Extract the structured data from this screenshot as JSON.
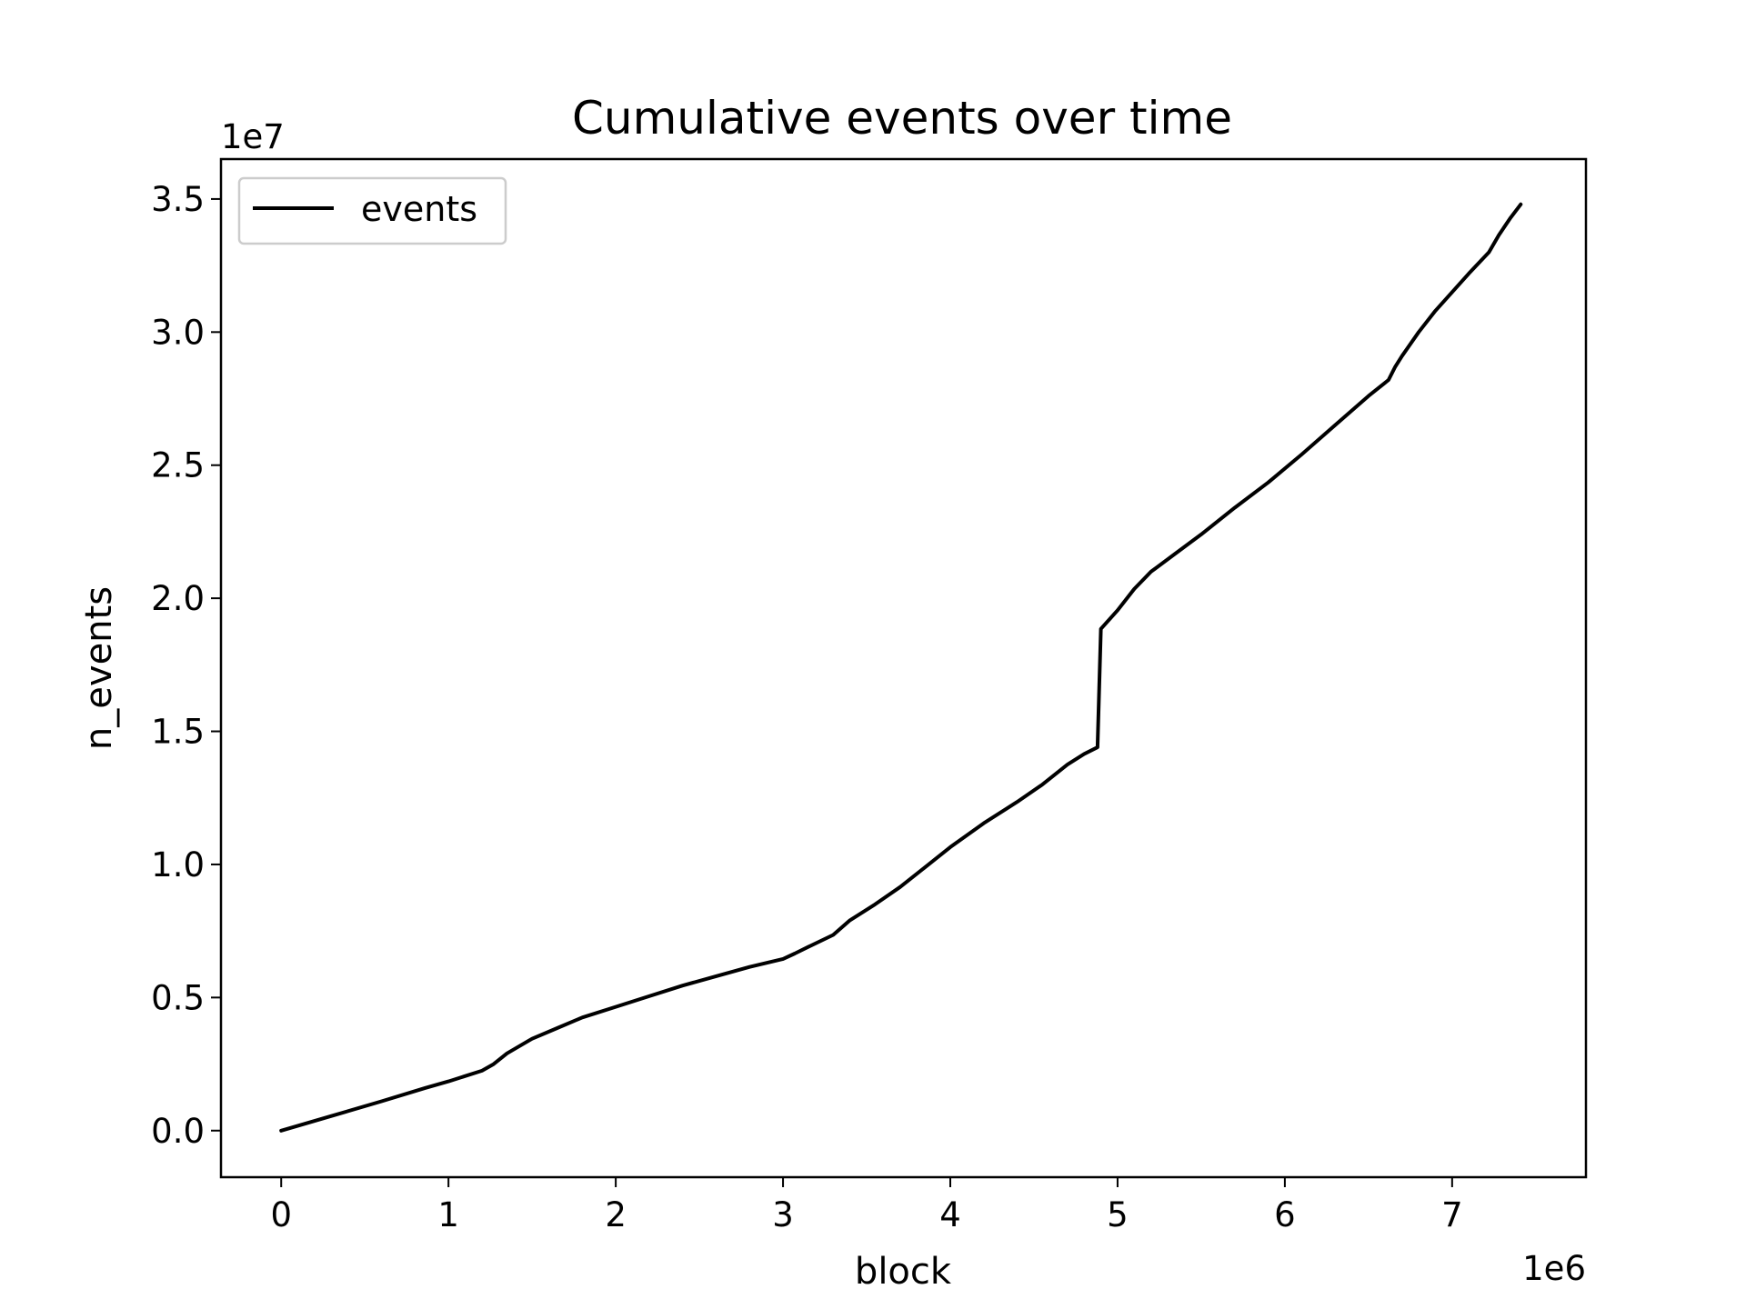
{
  "chart_data": {
    "type": "line",
    "title": "Cumulative events over time",
    "xlabel": "block",
    "ylabel": "n_events",
    "x_offset_label": "1e6",
    "y_offset_label": "1e7",
    "xlim": [
      -0.36,
      7.8
    ],
    "ylim": [
      -0.175,
      3.65
    ],
    "x_scale_note": "x values in units of 1e6",
    "y_scale_note": "y values in units of 1e7",
    "xticks": [
      0,
      1,
      2,
      3,
      4,
      5,
      6,
      7
    ],
    "xtick_labels": [
      "0",
      "1",
      "2",
      "3",
      "4",
      "5",
      "6",
      "7"
    ],
    "yticks": [
      0.0,
      0.5,
      1.0,
      1.5,
      2.0,
      2.5,
      3.0,
      3.5
    ],
    "ytick_labels": [
      "0.0",
      "0.5",
      "1.0",
      "1.5",
      "2.0",
      "2.5",
      "3.0",
      "3.5"
    ],
    "grid": false,
    "legend_position": "top-left",
    "series": [
      {
        "name": "events",
        "color": "#000000",
        "x": [
          0.0,
          0.3,
          0.6,
          0.86,
          1.0,
          1.2,
          1.27,
          1.35,
          1.5,
          1.65,
          1.8,
          2.0,
          2.2,
          2.4,
          2.6,
          2.8,
          3.0,
          3.07,
          3.15,
          3.3,
          3.4,
          3.55,
          3.7,
          3.85,
          4.0,
          4.2,
          4.4,
          4.55,
          4.7,
          4.8,
          4.88,
          4.9,
          5.0,
          5.1,
          5.2,
          5.35,
          5.5,
          5.7,
          5.9,
          6.1,
          6.3,
          6.5,
          6.62,
          6.66,
          6.7,
          6.8,
          6.9,
          7.0,
          7.1,
          7.22,
          7.28,
          7.35,
          7.41
        ],
        "y": [
          0.0,
          0.055,
          0.11,
          0.16,
          0.185,
          0.225,
          0.25,
          0.29,
          0.345,
          0.385,
          0.425,
          0.465,
          0.505,
          0.545,
          0.58,
          0.615,
          0.645,
          0.665,
          0.69,
          0.735,
          0.79,
          0.85,
          0.915,
          0.99,
          1.065,
          1.155,
          1.235,
          1.3,
          1.375,
          1.415,
          1.44,
          1.885,
          1.955,
          2.035,
          2.1,
          2.17,
          2.24,
          2.34,
          2.435,
          2.54,
          2.65,
          2.76,
          2.82,
          2.87,
          2.91,
          3.0,
          3.08,
          3.15,
          3.22,
          3.3,
          3.365,
          3.43,
          3.48
        ]
      }
    ]
  }
}
